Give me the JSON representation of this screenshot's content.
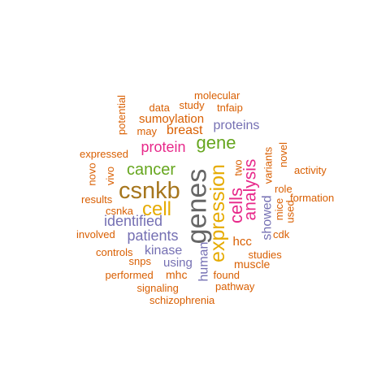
{
  "palette": {
    "orange": "#D95F02",
    "purple": "#7570B3",
    "magenta": "#E7298A",
    "green": "#66A61E",
    "gold": "#E6AB02",
    "brown": "#A6761D",
    "gray": "#666666"
  },
  "words": [
    {
      "text": "genes",
      "color": "gray",
      "orientation": "vertical"
    },
    {
      "text": "csnkb",
      "color": "brown",
      "orientation": "horizontal"
    },
    {
      "text": "expression",
      "color": "gold",
      "orientation": "vertical"
    },
    {
      "text": "cell",
      "color": "gold",
      "orientation": "horizontal"
    },
    {
      "text": "cells",
      "color": "magenta",
      "orientation": "vertical"
    },
    {
      "text": "analysis",
      "color": "magenta",
      "orientation": "vertical"
    },
    {
      "text": "gene",
      "color": "green",
      "orientation": "horizontal"
    },
    {
      "text": "cancer",
      "color": "green",
      "orientation": "horizontal"
    },
    {
      "text": "protein",
      "color": "magenta",
      "orientation": "horizontal"
    },
    {
      "text": "identified",
      "color": "purple",
      "orientation": "horizontal"
    },
    {
      "text": "patients",
      "color": "purple",
      "orientation": "horizontal"
    },
    {
      "text": "human",
      "color": "purple",
      "orientation": "vertical"
    },
    {
      "text": "showed",
      "color": "purple",
      "orientation": "vertical"
    },
    {
      "text": "kinase",
      "color": "purple",
      "orientation": "horizontal"
    },
    {
      "text": "proteins",
      "color": "purple",
      "orientation": "horizontal"
    },
    {
      "text": "breast",
      "color": "orange",
      "orientation": "horizontal"
    },
    {
      "text": "sumoylation",
      "color": "orange",
      "orientation": "horizontal"
    },
    {
      "text": "using",
      "color": "purple",
      "orientation": "horizontal"
    },
    {
      "text": "hcc",
      "color": "orange",
      "orientation": "horizontal"
    },
    {
      "text": "muscle",
      "color": "orange",
      "orientation": "horizontal"
    },
    {
      "text": "mhc",
      "color": "orange",
      "orientation": "horizontal"
    },
    {
      "text": "two",
      "color": "orange",
      "orientation": "vertical"
    },
    {
      "text": "variants",
      "color": "orange",
      "orientation": "vertical"
    },
    {
      "text": "molecular",
      "color": "orange",
      "orientation": "horizontal"
    },
    {
      "text": "study",
      "color": "orange",
      "orientation": "horizontal"
    },
    {
      "text": "tnfaip",
      "color": "orange",
      "orientation": "horizontal"
    },
    {
      "text": "data",
      "color": "orange",
      "orientation": "horizontal"
    },
    {
      "text": "may",
      "color": "orange",
      "orientation": "horizontal"
    },
    {
      "text": "potential",
      "color": "orange",
      "orientation": "vertical"
    },
    {
      "text": "expressed",
      "color": "orange",
      "orientation": "horizontal"
    },
    {
      "text": "novo",
      "color": "orange",
      "orientation": "vertical"
    },
    {
      "text": "vivo",
      "color": "orange",
      "orientation": "vertical"
    },
    {
      "text": "results",
      "color": "orange",
      "orientation": "horizontal"
    },
    {
      "text": "csnka",
      "color": "orange",
      "orientation": "horizontal"
    },
    {
      "text": "involved",
      "color": "orange",
      "orientation": "horizontal"
    },
    {
      "text": "controls",
      "color": "orange",
      "orientation": "horizontal"
    },
    {
      "text": "snps",
      "color": "orange",
      "orientation": "horizontal"
    },
    {
      "text": "performed",
      "color": "orange",
      "orientation": "horizontal"
    },
    {
      "text": "signaling",
      "color": "orange",
      "orientation": "horizontal"
    },
    {
      "text": "schizophrenia",
      "color": "orange",
      "orientation": "horizontal"
    },
    {
      "text": "found",
      "color": "orange",
      "orientation": "horizontal"
    },
    {
      "text": "pathway",
      "color": "orange",
      "orientation": "horizontal"
    },
    {
      "text": "studies",
      "color": "orange",
      "orientation": "horizontal"
    },
    {
      "text": "novel",
      "color": "orange",
      "orientation": "vertical"
    },
    {
      "text": "activity",
      "color": "orange",
      "orientation": "horizontal"
    },
    {
      "text": "role",
      "color": "orange",
      "orientation": "horizontal"
    },
    {
      "text": "formation",
      "color": "orange",
      "orientation": "horizontal"
    },
    {
      "text": "mice",
      "color": "orange",
      "orientation": "vertical"
    },
    {
      "text": "used",
      "color": "orange",
      "orientation": "vertical"
    },
    {
      "text": "cdk",
      "color": "orange",
      "orientation": "horizontal"
    }
  ]
}
